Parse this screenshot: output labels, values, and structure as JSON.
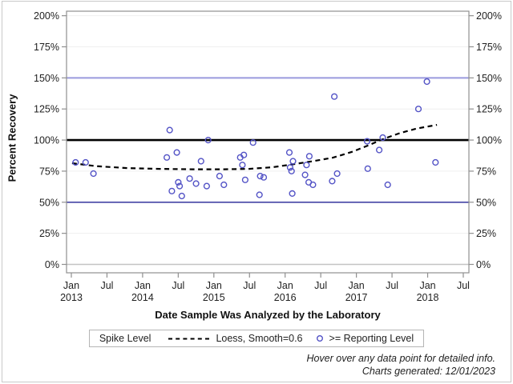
{
  "window": {
    "background": "#ffffff",
    "border_color": "#c9c9c9"
  },
  "y_axis": {
    "title": "Percent Recovery",
    "ticks": [
      {
        "value": 0,
        "label": "0%"
      },
      {
        "value": 25,
        "label": "25%"
      },
      {
        "value": 50,
        "label": "50%"
      },
      {
        "value": 75,
        "label": "75%"
      },
      {
        "value": 100,
        "label": "100%"
      },
      {
        "value": 125,
        "label": "125%"
      },
      {
        "value": 150,
        "label": "150%"
      },
      {
        "value": 175,
        "label": "175%"
      },
      {
        "value": 200,
        "label": "200%"
      }
    ]
  },
  "x_axis": {
    "title": "Date Sample Was Analyzed by the Laboratory",
    "ticks": [
      {
        "value": 2013.0,
        "label": "Jan",
        "year": "2013"
      },
      {
        "value": 2013.5,
        "label": "Jul"
      },
      {
        "value": 2014.0,
        "label": "Jan",
        "year": "2014"
      },
      {
        "value": 2014.5,
        "label": "Jul"
      },
      {
        "value": 2015.0,
        "label": "Jan",
        "year": "2015"
      },
      {
        "value": 2015.5,
        "label": "Jul"
      },
      {
        "value": 2016.0,
        "label": "Jan",
        "year": "2016"
      },
      {
        "value": 2016.5,
        "label": "Jul"
      },
      {
        "value": 2017.0,
        "label": "Jan",
        "year": "2017"
      },
      {
        "value": 2017.5,
        "label": "Jul"
      },
      {
        "value": 2018.0,
        "label": "Jan",
        "year": "2018"
      },
      {
        "value": 2018.5,
        "label": "Jul"
      }
    ]
  },
  "legend": {
    "title": "Spike Level",
    "items": [
      {
        "marker": "dashed-line",
        "label": "Loess, Smooth=0.6"
      },
      {
        "marker": "open-circle",
        "label": ">= Reporting Level"
      }
    ]
  },
  "footnotes": {
    "line1": "Hover over any data point for detailed info.",
    "line2": "Charts generated: 12/01/2023"
  },
  "colors": {
    "marker": "#5353c6",
    "loess": "#000000",
    "refline_50": "#4343a5",
    "refline_100": "#000000",
    "refline_150": "#9a9ade",
    "frame": "#8f8f8f",
    "gridline": "#efefef",
    "zero_line": "#c4c4c4",
    "tick_label": "#1f1f1f"
  },
  "chart_data": {
    "type": "scatter",
    "title": "",
    "xlabel": "Date Sample Was Analyzed by the Laboratory",
    "ylabel": "Percent Recovery",
    "x_unit": "decimal_year",
    "xlim": [
      2013.0,
      2018.5
    ],
    "ylim": [
      0,
      200
    ],
    "y_tick_step": 25,
    "grid": true,
    "legend_position": "bottom",
    "draw_xlim": [
      2012.9325,
      2018.579
    ],
    "draw_ylim": [
      -6.76,
      203.63
    ],
    "reference_lines": [
      {
        "y": 50,
        "color": "#4343a5",
        "width": 1.6
      },
      {
        "y": 100,
        "color": "#000000",
        "width": 2.6
      },
      {
        "y": 150,
        "color": "#9a9ade",
        "width": 2.0
      }
    ],
    "series": [
      {
        "name": ">= Reporting Level",
        "type": "scatter",
        "points": [
          [
            2013.06,
            82
          ],
          [
            2013.2,
            82
          ],
          [
            2013.31,
            73
          ],
          [
            2014.34,
            86
          ],
          [
            2014.38,
            108
          ],
          [
            2014.41,
            59
          ],
          [
            2014.48,
            90
          ],
          [
            2014.5,
            66
          ],
          [
            2014.52,
            63
          ],
          [
            2014.55,
            55
          ],
          [
            2014.66,
            69
          ],
          [
            2014.75,
            65
          ],
          [
            2014.82,
            83
          ],
          [
            2014.9,
            63
          ],
          [
            2014.92,
            100
          ],
          [
            2015.08,
            71
          ],
          [
            2015.14,
            64
          ],
          [
            2015.37,
            86
          ],
          [
            2015.4,
            80
          ],
          [
            2015.42,
            88
          ],
          [
            2015.44,
            68
          ],
          [
            2015.55,
            98
          ],
          [
            2015.64,
            56
          ],
          [
            2015.65,
            71
          ],
          [
            2015.7,
            70
          ],
          [
            2016.06,
            90
          ],
          [
            2016.07,
            78
          ],
          [
            2016.09,
            75
          ],
          [
            2016.1,
            57
          ],
          [
            2016.11,
            83
          ],
          [
            2016.28,
            72
          ],
          [
            2016.3,
            80
          ],
          [
            2016.33,
            66
          ],
          [
            2016.34,
            87
          ],
          [
            2016.39,
            64
          ],
          [
            2016.66,
            67
          ],
          [
            2016.69,
            135
          ],
          [
            2016.73,
            73
          ],
          [
            2017.15,
            99
          ],
          [
            2017.16,
            77
          ],
          [
            2017.32,
            92
          ],
          [
            2017.37,
            102
          ],
          [
            2017.44,
            64
          ],
          [
            2017.87,
            125
          ],
          [
            2017.99,
            147
          ],
          [
            2018.11,
            82
          ]
        ]
      },
      {
        "name": "Loess, Smooth=0.6",
        "type": "line",
        "style": "dashed",
        "points": [
          [
            2013.01,
            81.4
          ],
          [
            2013.35,
            79.0
          ],
          [
            2013.8,
            77.4
          ],
          [
            2014.25,
            76.8
          ],
          [
            2014.7,
            76.5
          ],
          [
            2015.15,
            76.5
          ],
          [
            2015.49,
            76.8
          ],
          [
            2015.82,
            78.1
          ],
          [
            2016.1,
            80.4
          ],
          [
            2016.39,
            83.0
          ],
          [
            2016.67,
            85.8
          ],
          [
            2016.95,
            90.7
          ],
          [
            2017.17,
            95.8
          ],
          [
            2017.4,
            101.3
          ],
          [
            2017.62,
            105.8
          ],
          [
            2017.85,
            109.3
          ],
          [
            2018.13,
            112.2
          ]
        ]
      }
    ]
  }
}
